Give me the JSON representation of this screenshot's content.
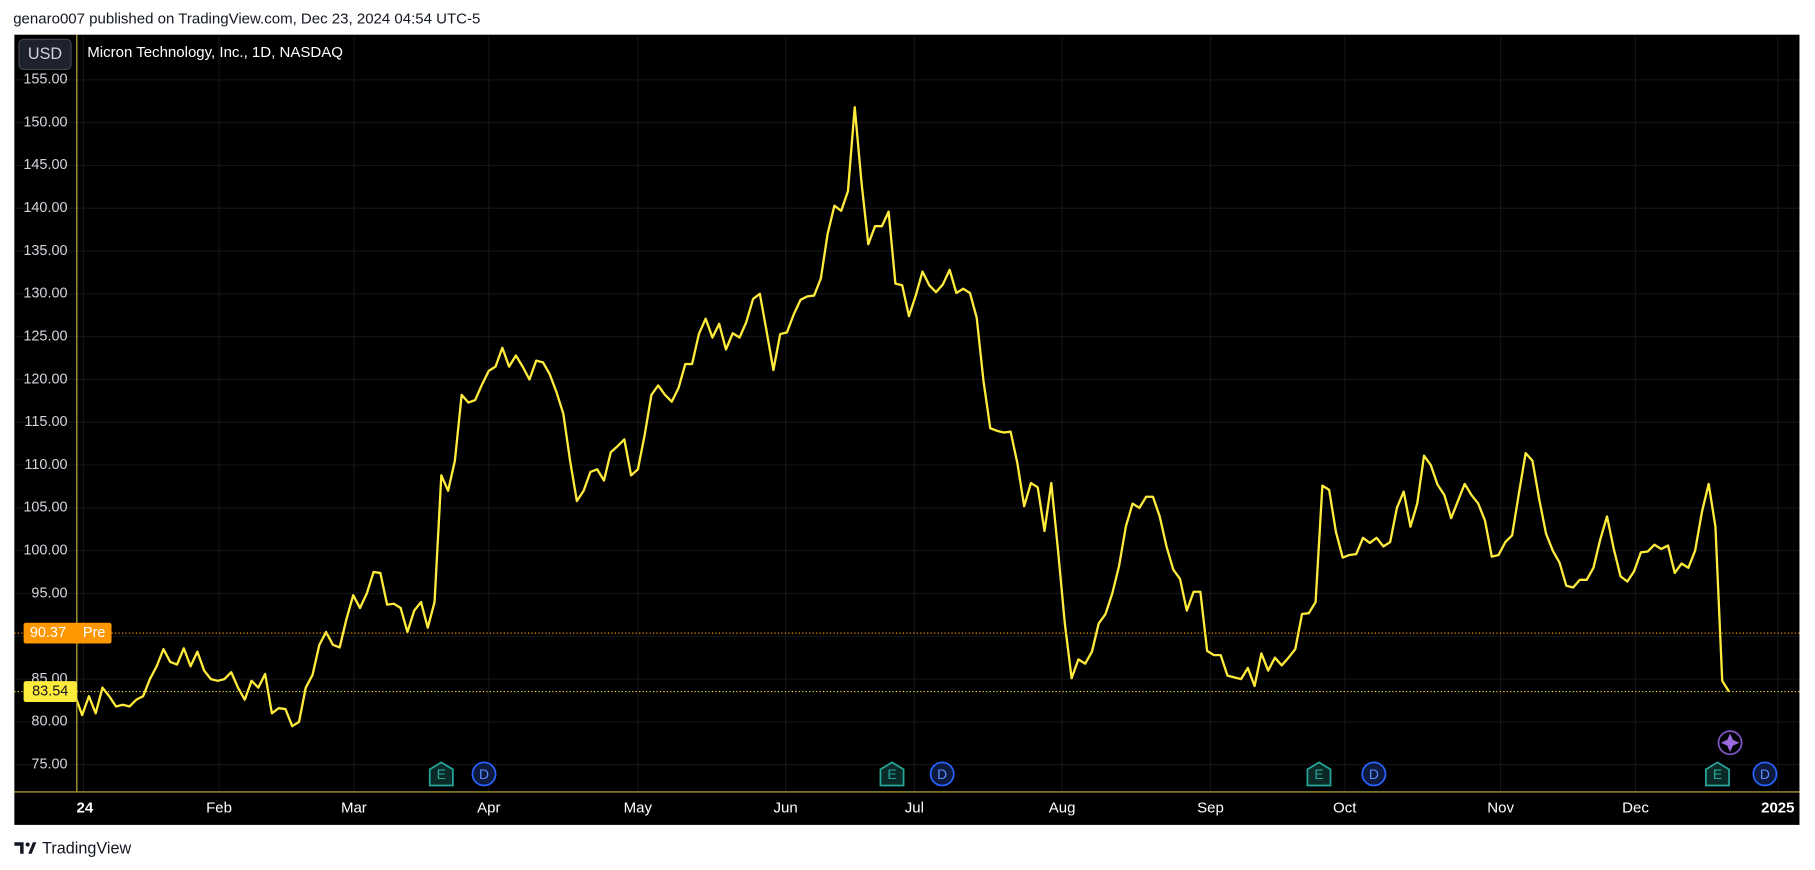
{
  "chart_data": {
    "type": "line",
    "header": "genaro007 published on TradingView.com, Dec 23, 2024 04:54 UTC-5",
    "title": "Micron Technology, Inc., 1D, NASDAQ",
    "currency": "USD",
    "brand": "TradingView",
    "color": "#ffeb3b",
    "grid": true,
    "values": [
      83,
      80.8,
      83,
      81,
      84,
      83,
      81.8,
      82,
      81.8,
      82.6,
      83,
      85,
      86.5,
      88.5,
      87,
      86.7,
      88.6,
      86.5,
      88.2,
      86,
      85,
      84.8,
      85,
      85.8,
      84,
      82.6,
      84.8,
      84,
      85.6,
      81,
      81.6,
      81.5,
      79.5,
      80,
      84,
      85.5,
      89,
      90.5,
      89,
      88.7,
      92,
      94.8,
      93.3,
      95,
      97.5,
      97.4,
      93.7,
      93.8,
      93.3,
      90.5,
      93,
      94,
      91,
      94,
      108.8,
      107,
      110.5,
      118.2,
      117.3,
      117.6,
      119.4,
      121,
      121.5,
      123.7,
      121.5,
      122.8,
      121.5,
      120,
      122.2,
      122,
      120.6,
      118.5,
      116,
      110.5,
      105.8,
      107,
      109.2,
      109.5,
      108.2,
      111.5,
      112.2,
      113,
      108.8,
      109.5,
      113.5,
      118.2,
      119.3,
      118.2,
      117.4,
      119,
      121.8,
      121.8,
      125.3,
      127.1,
      124.9,
      126.5,
      123.5,
      125.4,
      124.9,
      126.7,
      129.4,
      130,
      125.6,
      121.1,
      125.3,
      125.5,
      127.6,
      129.3,
      129.7,
      129.8,
      131.8,
      137,
      140.3,
      139.7,
      142,
      151.8,
      143,
      135.8,
      137.9,
      137.9,
      139.6,
      131.2,
      131,
      127.4,
      129.8,
      132.6,
      131,
      130.2,
      131.1,
      132.8,
      130.1,
      130.6,
      130.1,
      127.2,
      119.8,
      114.3,
      114,
      113.8,
      113.9,
      110.2,
      105.2,
      107.9,
      107.4,
      102.3,
      107.9,
      100,
      91.5,
      85.1,
      87.3,
      86.8,
      88.2,
      91.5,
      92.6,
      95,
      98.2,
      102.8,
      105.5,
      105,
      106.3,
      106.3,
      104,
      100.5,
      97.8,
      96.7,
      93,
      95.2,
      95.2,
      88.3,
      87.8,
      87.8,
      85.4,
      85.2,
      85,
      86.3,
      84.2,
      88,
      86,
      87.5,
      86.6,
      87.5,
      88.5,
      92.6,
      92.7,
      94,
      107.6,
      107.1,
      102.2,
      99.2,
      99.5,
      99.6,
      101.5,
      100.9,
      101.5,
      100.5,
      101,
      105,
      106.9,
      102.8,
      105.5,
      111.1,
      110,
      107.7,
      106.5,
      103.8,
      105.8,
      107.8,
      106.5,
      105.5,
      103.5,
      99.3,
      99.5,
      101,
      101.8,
      106.7,
      111.4,
      110.5,
      106,
      102,
      100,
      98.6,
      95.9,
      95.7,
      96.6,
      96.6,
      98,
      101.3,
      104,
      100.2,
      97,
      96.4,
      97.6,
      99.8,
      99.9,
      100.7,
      100.2,
      100.6,
      97.4,
      98.5,
      98,
      100,
      104.5,
      107.8,
      102.8,
      84.8,
      83.54
    ],
    "xlim": [
      -9,
      254.4
    ],
    "xticks": [
      {
        "value": 1.2,
        "label": "24"
      },
      {
        "value": 21.2,
        "label": "Feb"
      },
      {
        "value": 41.1,
        "label": "Mar"
      },
      {
        "value": 61,
        "label": "Apr"
      },
      {
        "value": 83,
        "label": "May"
      },
      {
        "value": 104.8,
        "label": "Jun"
      },
      {
        "value": 123.8,
        "label": "Jul"
      },
      {
        "value": 145.6,
        "label": "Aug"
      },
      {
        "value": 167.5,
        "label": "Sep"
      },
      {
        "value": 187.3,
        "label": "Oct"
      },
      {
        "value": 210.3,
        "label": "Nov"
      },
      {
        "value": 230.2,
        "label": "Dec"
      },
      {
        "value": 251.2,
        "label": "2025"
      }
    ],
    "ylim": [
      71.89,
      160.27
    ],
    "yticks": [
      {
        "value": 75,
        "label": "75.00"
      },
      {
        "value": 80,
        "label": "80.00"
      },
      {
        "value": 85,
        "label": "85.00"
      },
      {
        "value": 90,
        "label": "90.00"
      },
      {
        "value": 95,
        "label": "95.00"
      },
      {
        "value": 100,
        "label": "100.00"
      },
      {
        "value": 105,
        "label": "105.00"
      },
      {
        "value": 110,
        "label": "110.00"
      },
      {
        "value": 115,
        "label": "115.00"
      },
      {
        "value": 120,
        "label": "120.00"
      },
      {
        "value": 125,
        "label": "125.00"
      },
      {
        "value": 130,
        "label": "130.00"
      },
      {
        "value": 135,
        "label": "135.00"
      },
      {
        "value": 140,
        "label": "140.00"
      },
      {
        "value": 145,
        "label": "145.00"
      },
      {
        "value": 150,
        "label": "150.00"
      },
      {
        "value": 155,
        "label": "155.00"
      }
    ],
    "last_price": 83.54,
    "pre_market": {
      "label": "Pre",
      "value": 90.37
    },
    "events": [
      {
        "label": "E",
        "x": 54
      },
      {
        "label": "D",
        "x": 60.3
      },
      {
        "label": "E",
        "x": 120.5
      },
      {
        "label": "D",
        "x": 127.9
      },
      {
        "label": "E",
        "x": 183.5
      },
      {
        "label": "D",
        "x": 191.6
      },
      {
        "label": "E",
        "x": 242.3
      },
      {
        "label": "D",
        "x": 249.3
      }
    ]
  }
}
